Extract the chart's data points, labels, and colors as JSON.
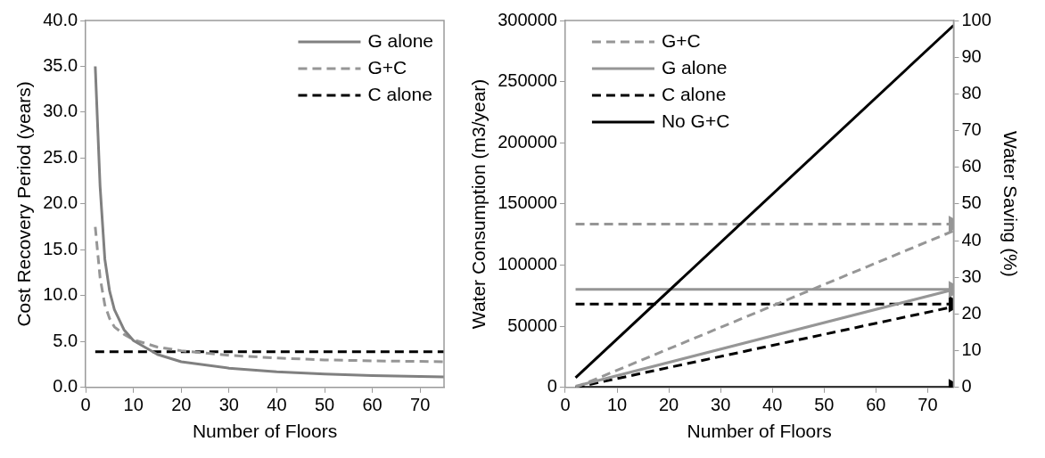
{
  "chart_data": [
    {
      "type": "line",
      "xlabel": "Number of Floors",
      "ylabel": "Cost Recovery Period (years)",
      "xlim": [
        0,
        75
      ],
      "xticks": [
        0,
        10,
        20,
        30,
        40,
        50,
        60,
        70
      ],
      "ylim": [
        0,
        40
      ],
      "yticks": [
        {
          "value": 0,
          "label": "0.0"
        },
        {
          "value": 5,
          "label": "5.0"
        },
        {
          "value": 10,
          "label": "10.0"
        },
        {
          "value": 15,
          "label": "15.0"
        },
        {
          "value": 20,
          "label": "20.0"
        },
        {
          "value": 25,
          "label": "25.0"
        },
        {
          "value": 30,
          "label": "30.0"
        },
        {
          "value": 35,
          "label": "35.0"
        },
        {
          "value": 40,
          "label": "40.0"
        }
      ],
      "grid": false,
      "legend": "top right",
      "series": [
        {
          "name": "G alone",
          "color": "#808080",
          "line_style": "solid",
          "x": [
            2,
            3,
            4,
            5,
            6,
            8,
            10,
            15,
            20,
            30,
            40,
            50,
            60,
            75
          ],
          "values": [
            35,
            22,
            14,
            10.5,
            8.5,
            6.3,
            5.1,
            3.6,
            2.8,
            2.1,
            1.7,
            1.45,
            1.3,
            1.15
          ]
        },
        {
          "name": "G+C",
          "color": "#969696",
          "line_style": "dashed",
          "x": [
            2,
            3,
            4,
            5,
            6,
            8,
            10,
            15,
            20,
            30,
            40,
            50,
            60,
            75
          ],
          "values": [
            17.5,
            12,
            9,
            7.5,
            6.6,
            5.8,
            5.2,
            4.4,
            4,
            3.5,
            3.2,
            3,
            2.9,
            2.8
          ]
        },
        {
          "name": "C alone",
          "color": "#000000",
          "line_style": "dashed",
          "x": [
            2,
            75
          ],
          "values": [
            3.9,
            3.9
          ]
        }
      ]
    },
    {
      "type": "line",
      "xlabel": "Number of Floors",
      "ylabel": "Water Consumption (m3/year)",
      "y2label": "Water Saving (%)",
      "xlim": [
        0,
        75
      ],
      "xticks": [
        0,
        10,
        20,
        30,
        40,
        50,
        60,
        70
      ],
      "ylim": [
        0,
        300000
      ],
      "yticks": [
        0,
        50000,
        100000,
        150000,
        200000,
        250000,
        300000
      ],
      "y2lim": [
        0,
        100
      ],
      "y2ticks": [
        0,
        10,
        20,
        30,
        40,
        50,
        60,
        70,
        80,
        90,
        100
      ],
      "grid": false,
      "legend": "top left",
      "series": [
        {
          "name": "G+C",
          "color": "#969696",
          "line_style": "dashed",
          "x": [
            2,
            75
          ],
          "values": [
            0,
            128000
          ]
        },
        {
          "name": "G alone",
          "color": "#969696",
          "line_style": "solid",
          "x": [
            2,
            75
          ],
          "values": [
            1000,
            80000
          ]
        },
        {
          "name": "C alone",
          "color": "#000000",
          "line_style": "dashed",
          "x": [
            2,
            75
          ],
          "values": [
            0,
            66000
          ]
        },
        {
          "name": "No G+C",
          "color": "#000000",
          "line_style": "solid",
          "x": [
            2,
            75
          ],
          "values": [
            8000,
            296000
          ]
        },
        {
          "color": "#969696",
          "line_style": "dashed",
          "axis": "y2",
          "marker": "triangle",
          "x": [
            2,
            75
          ],
          "values": [
            44.5,
            44.5
          ]
        },
        {
          "color": "#969696",
          "line_style": "solid",
          "axis": "y2",
          "marker": "triangle",
          "x": [
            2,
            75
          ],
          "values": [
            26.7,
            26.7
          ]
        },
        {
          "color": "#000000",
          "line_style": "dashed",
          "axis": "y2",
          "marker": "triangle",
          "x": [
            2,
            75
          ],
          "values": [
            22.7,
            22.7
          ]
        },
        {
          "color": "#000000",
          "line_style": "solid",
          "axis": "y2",
          "marker": "triangle",
          "x": [
            2,
            75
          ],
          "values": [
            0,
            0
          ]
        }
      ]
    }
  ]
}
